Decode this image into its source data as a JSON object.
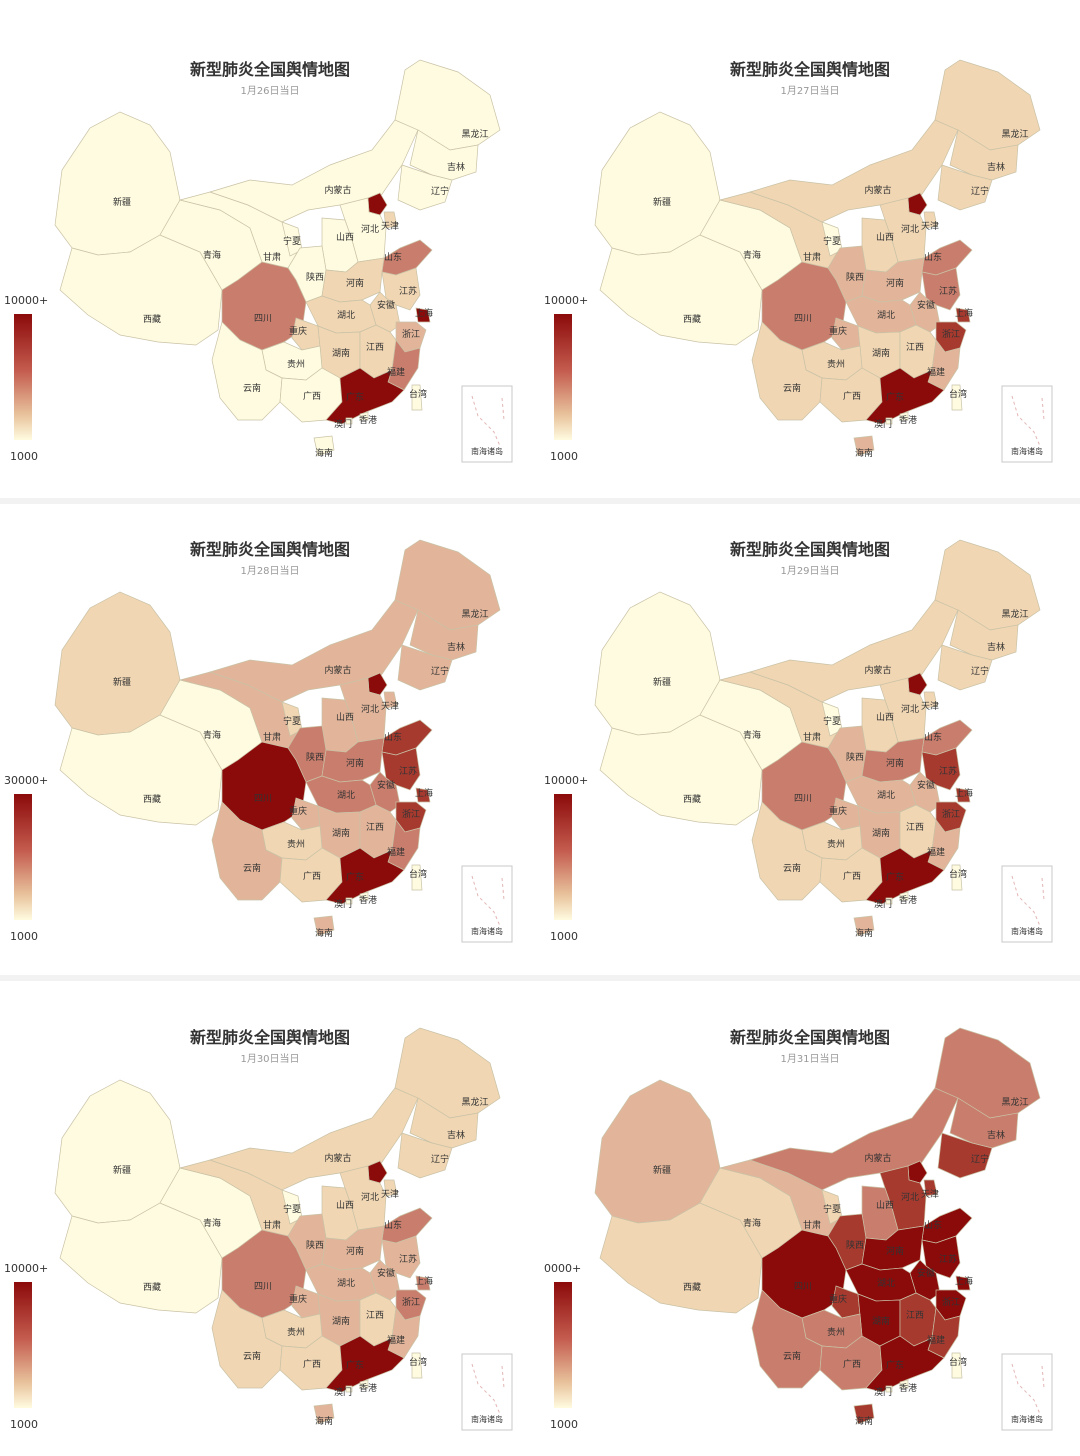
{
  "colors": {
    "land_base": "#fdf8dd",
    "border": "#c9c2a6",
    "scale": [
      "#fffbe0",
      "#f0d6b3",
      "#e2b59a",
      "#c97d6c",
      "#a63a2f",
      "#8b0a0a"
    ]
  },
  "map_common": {
    "title": "新型肺炎全国舆情地图",
    "inset_label": "南海诸岛",
    "legend_min": "1000",
    "provinces": [
      "新疆",
      "青海",
      "甘肃",
      "宁夏",
      "西藏",
      "内蒙古",
      "黑龙江",
      "吉林",
      "辽宁",
      "河北",
      "天津",
      "山西",
      "陕西",
      "山东",
      "河南",
      "江苏",
      "安徽",
      "上海",
      "湖北",
      "浙江",
      "四川",
      "重庆",
      "湖南",
      "江西",
      "福建",
      "贵州",
      "云南",
      "广西",
      "广东",
      "香港",
      "澳门",
      "海南",
      "台湾"
    ]
  },
  "maps": [
    {
      "subtitle": "1月26日当日",
      "legend_max": "10000+",
      "levels": {
        "新疆": 0,
        "青海": 0,
        "甘肃": 0,
        "宁夏": 0,
        "西藏": 0,
        "内蒙古": 0,
        "黑龙江": 0,
        "吉林": 0,
        "辽宁": 0,
        "北京": 5,
        "河北": 0,
        "天津": 1,
        "山西": 0,
        "陕西": 0,
        "山东": 3,
        "河南": 1,
        "江苏": 1,
        "安徽": 1,
        "上海": 5,
        "湖北": 1,
        "浙江": 2,
        "四川": 3,
        "重庆": 1,
        "湖南": 1,
        "江西": 1,
        "福建": 3,
        "贵州": 0,
        "云南": 0,
        "广西": 0,
        "广东": 5,
        "香港": 0,
        "澳门": 0,
        "海南": 0,
        "台湾": 0
      }
    },
    {
      "subtitle": "1月27日当日",
      "legend_max": "10000+",
      "levels": {
        "新疆": 0,
        "青海": 0,
        "甘肃": 1,
        "宁夏": 0,
        "西藏": 0,
        "内蒙古": 1,
        "黑龙江": 1,
        "吉林": 1,
        "辽宁": 1,
        "北京": 5,
        "河北": 1,
        "天津": 1,
        "山西": 1,
        "陕西": 2,
        "山东": 3,
        "河南": 2,
        "江苏": 3,
        "安徽": 2,
        "上海": 4,
        "湖北": 2,
        "浙江": 4,
        "四川": 3,
        "重庆": 2,
        "湖南": 1,
        "江西": 1,
        "福建": 2,
        "贵州": 1,
        "云南": 1,
        "广西": 1,
        "广东": 5,
        "香港": 0,
        "澳门": 0,
        "海南": 2,
        "台湾": 0
      }
    },
    {
      "subtitle": "1月28日当日",
      "legend_max": "30000+",
      "levels": {
        "新疆": 1,
        "青海": 0,
        "甘肃": 2,
        "宁夏": 1,
        "西藏": 0,
        "内蒙古": 2,
        "黑龙江": 2,
        "吉林": 2,
        "辽宁": 2,
        "北京": 5,
        "河北": 2,
        "天津": 2,
        "山西": 2,
        "陕西": 3,
        "山东": 4,
        "河南": 3,
        "江苏": 4,
        "安徽": 3,
        "上海": 4,
        "湖北": 3,
        "浙江": 4,
        "四川": 5,
        "重庆": 2,
        "湖南": 2,
        "江西": 2,
        "福建": 3,
        "贵州": 1,
        "云南": 2,
        "广西": 1,
        "广东": 5,
        "香港": 0,
        "澳门": 0,
        "海南": 2,
        "台湾": 0
      }
    },
    {
      "subtitle": "1月29日当日",
      "legend_max": "10000+",
      "levels": {
        "新疆": 0,
        "青海": 0,
        "甘肃": 1,
        "宁夏": 0,
        "西藏": 0,
        "内蒙古": 1,
        "黑龙江": 1,
        "吉林": 1,
        "辽宁": 1,
        "北京": 5,
        "河北": 1,
        "天津": 1,
        "山西": 1,
        "陕西": 2,
        "山东": 3,
        "河南": 3,
        "江苏": 4,
        "安徽": 2,
        "上海": 4,
        "湖北": 2,
        "浙江": 4,
        "四川": 3,
        "重庆": 2,
        "湖南": 2,
        "江西": 1,
        "福建": 2,
        "贵州": 1,
        "云南": 1,
        "广西": 1,
        "广东": 5,
        "香港": 0,
        "澳门": 0,
        "海南": 2,
        "台湾": 0
      }
    },
    {
      "subtitle": "1月30日当日",
      "legend_max": "10000+",
      "levels": {
        "新疆": 0,
        "青海": 0,
        "甘肃": 1,
        "宁夏": 0,
        "西藏": 0,
        "内蒙古": 1,
        "黑龙江": 1,
        "吉林": 1,
        "辽宁": 1,
        "北京": 5,
        "河北": 1,
        "天津": 1,
        "山西": 1,
        "陕西": 2,
        "山东": 3,
        "河南": 2,
        "江苏": 2,
        "安徽": 2,
        "上海": 3,
        "湖北": 2,
        "浙江": 3,
        "四川": 3,
        "重庆": 2,
        "湖南": 2,
        "江西": 1,
        "福建": 2,
        "贵州": 1,
        "云南": 1,
        "广西": 1,
        "广东": 5,
        "香港": 0,
        "澳门": 0,
        "海南": 2,
        "台湾": 0
      }
    },
    {
      "subtitle": "1月31日当日",
      "legend_max": "0000+",
      "levels": {
        "新疆": 2,
        "青海": 1,
        "甘肃": 2,
        "宁夏": 1,
        "西藏": 1,
        "内蒙古": 3,
        "黑龙江": 3,
        "吉林": 3,
        "辽宁": 4,
        "北京": 5,
        "河北": 4,
        "天津": 4,
        "山西": 3,
        "陕西": 4,
        "山东": 5,
        "河南": 5,
        "江苏": 5,
        "安徽": 5,
        "上海": 5,
        "湖北": 5,
        "浙江": 5,
        "四川": 5,
        "重庆": 4,
        "湖南": 5,
        "江西": 4,
        "福建": 4,
        "贵州": 3,
        "云南": 3,
        "广西": 3,
        "广东": 5,
        "香港": 0,
        "澳门": 0,
        "海南": 4,
        "台湾": 0
      }
    }
  ]
}
